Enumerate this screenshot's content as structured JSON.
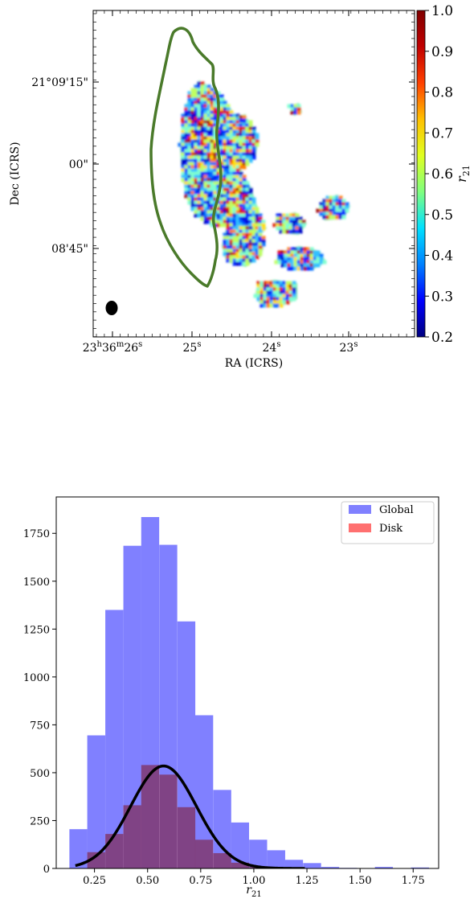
{
  "chart_data": [
    {
      "type": "heatmap",
      "title": "",
      "xlabel": "RA (ICRS)",
      "ylabel": "Dec (ICRS)",
      "x_ticks": [
        {
          "label_parts": [
            "23",
            "h",
            "36",
            "m",
            "26",
            "s"
          ]
        },
        {
          "label_parts": [
            "25",
            "s"
          ]
        },
        {
          "label_parts": [
            "24",
            "s"
          ]
        },
        {
          "label_parts": [
            "23",
            "s"
          ]
        }
      ],
      "y_ticks": [
        "21°09'15\"",
        "00\"",
        "08'45\""
      ],
      "colorbar": {
        "label": "r",
        "label_sub": "21",
        "range": [
          0.2,
          1.0
        ],
        "ticks": [
          "0.2",
          "0.3",
          "0.4",
          "0.5",
          "0.6",
          "0.7",
          "0.8",
          "0.9",
          "1.0"
        ],
        "colormap": [
          "#00007f",
          "#0000ff",
          "#0080ff",
          "#00e0ff",
          "#7fff7f",
          "#e0ff20",
          "#ffc000",
          "#ff4000",
          "#c00000",
          "#800000"
        ]
      },
      "contour_color": "#4a7a2a",
      "beam_color": "#000000"
    },
    {
      "type": "bar",
      "title": "",
      "xlabel": "r",
      "xlabel_sub": "21",
      "ylabel": "",
      "xlim": [
        0.07,
        1.87
      ],
      "ylim": [
        0,
        1940
      ],
      "bin_width": 0.0846,
      "x_ticks": [
        "0.25",
        "0.50",
        "0.75",
        "1.00",
        "1.25",
        "1.50",
        "1.75"
      ],
      "x_tick_values": [
        0.25,
        0.5,
        0.75,
        1.0,
        1.25,
        1.5,
        1.75
      ],
      "y_ticks": [
        "0",
        "250",
        "500",
        "750",
        "1000",
        "1250",
        "1500",
        "1750"
      ],
      "y_tick_values": [
        0,
        250,
        500,
        750,
        1000,
        1250,
        1500,
        1750
      ],
      "series": [
        {
          "name": "Global",
          "color": "#8080ff",
          "bin_starts": [
            0.132,
            0.216,
            0.301,
            0.386,
            0.47,
            0.555,
            0.64,
            0.724,
            0.809,
            0.893,
            0.978,
            1.063,
            1.147,
            1.232,
            1.317,
            1.401,
            1.486,
            1.57,
            1.655,
            1.74
          ],
          "values": [
            205,
            695,
            1350,
            1685,
            1835,
            1690,
            1290,
            800,
            410,
            240,
            150,
            95,
            45,
            28,
            8,
            3,
            2,
            8,
            2,
            5
          ]
        },
        {
          "name": "Disk",
          "color": "#ff7070",
          "bin_starts": [
            0.216,
            0.301,
            0.386,
            0.47,
            0.555,
            0.64,
            0.724,
            0.809,
            0.893,
            0.978
          ],
          "values": [
            85,
            180,
            330,
            540,
            490,
            320,
            150,
            80,
            30,
            8
          ]
        }
      ],
      "fit_curve": {
        "type": "gaussian",
        "amplitude": 535,
        "mean": 0.575,
        "sigma": 0.155,
        "color": "#000000"
      },
      "legend": "top-right"
    }
  ]
}
